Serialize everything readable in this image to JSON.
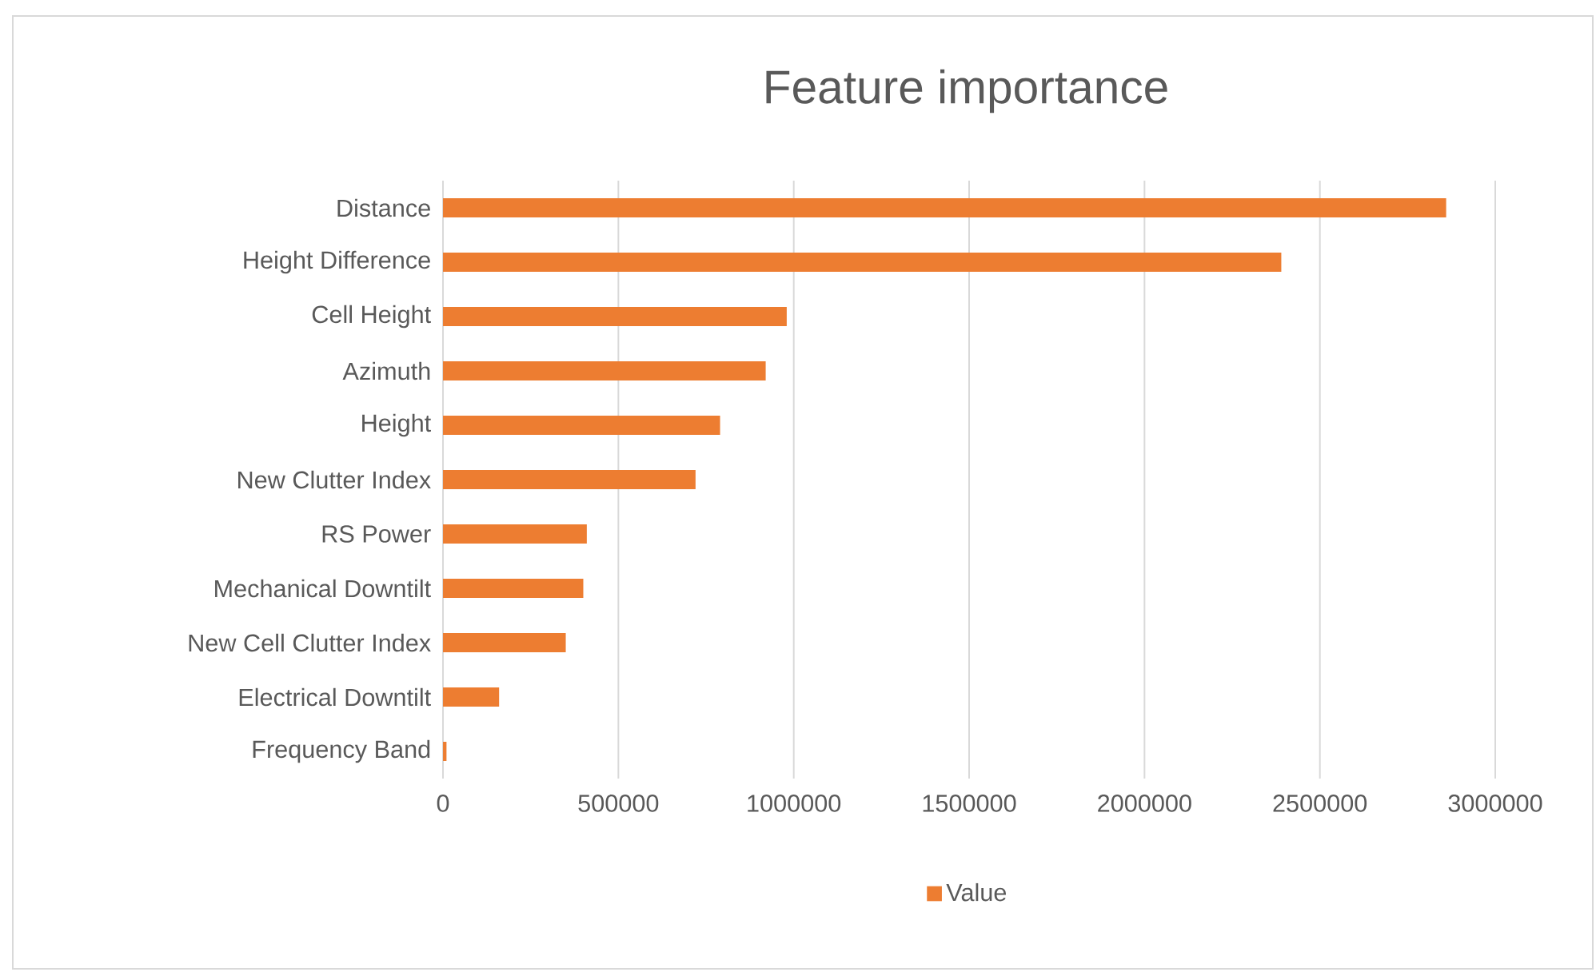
{
  "chart_data": {
    "type": "bar",
    "orientation": "horizontal",
    "title": "Feature importance",
    "categories": [
      "Distance",
      "Height Difference",
      "Cell Height",
      "Azimuth",
      "Height",
      "New Clutter Index",
      "RS Power",
      "Mechanical Downtilt",
      "New Cell Clutter Index",
      "Electrical Downtilt",
      "Frequency Band"
    ],
    "series": [
      {
        "name": "Value",
        "color": "#ed7d31",
        "values": [
          2860000,
          2390000,
          980000,
          920000,
          790000,
          720000,
          410000,
          400000,
          350000,
          160000,
          10000
        ]
      }
    ],
    "xlim": [
      0,
      3000000
    ],
    "xticks": [
      0,
      500000,
      1000000,
      1500000,
      2000000,
      2500000,
      3000000
    ],
    "grid": "x",
    "legend": "bottom"
  }
}
